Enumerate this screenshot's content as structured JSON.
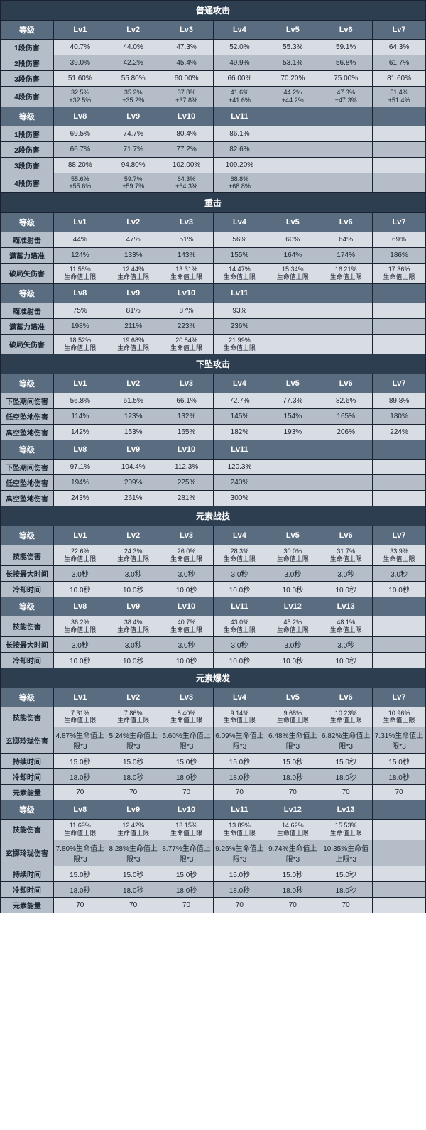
{
  "colors": {
    "section_header_bg": "#2d3e50",
    "col_header_bg": "#5a6c80",
    "row_label_bg": "#b5bec8",
    "cell_light_bg": "#d8dde3",
    "cell_dark_bg": "#b5bec8",
    "border": "#1a2332",
    "header_text": "#ffffff",
    "cell_text": "#1a2332"
  },
  "labels": {
    "level": "等级",
    "lv": [
      "Lv1",
      "Lv2",
      "Lv3",
      "Lv4",
      "Lv5",
      "Lv6",
      "Lv7",
      "Lv8",
      "Lv9",
      "Lv10",
      "Lv11",
      "Lv12",
      "Lv13"
    ]
  },
  "sections": [
    {
      "title": "普通攻击",
      "blocks": [
        {
          "levels": [
            "Lv1",
            "Lv2",
            "Lv3",
            "Lv4",
            "Lv5",
            "Lv6",
            "Lv7"
          ],
          "rows": [
            {
              "label": "1段伤害",
              "cells": [
                "40.7%",
                "44.0%",
                "47.3%",
                "52.0%",
                "55.3%",
                "59.1%",
                "64.3%"
              ]
            },
            {
              "label": "2段伤害",
              "cells": [
                "39.0%",
                "42.2%",
                "45.4%",
                "49.9%",
                "53.1%",
                "56.8%",
                "61.7%"
              ]
            },
            {
              "label": "3段伤害",
              "cells": [
                "51.60%",
                "55.80%",
                "60.00%",
                "66.00%",
                "70.20%",
                "75.00%",
                "81.60%"
              ]
            },
            {
              "label": "4段伤害",
              "cells": [
                "32.5% +32.5%",
                "35.2% +35.2%",
                "37.8% +37.8%",
                "41.6% +41.6%",
                "44.2% +44.2%",
                "47.3% +47.3%",
                "51.4% +51.4%"
              ]
            }
          ]
        },
        {
          "levels": [
            "Lv8",
            "Lv9",
            "Lv10",
            "Lv11",
            "",
            "",
            ""
          ],
          "rows": [
            {
              "label": "1段伤害",
              "cells": [
                "69.5%",
                "74.7%",
                "80.4%",
                "86.1%",
                "",
                "",
                ""
              ]
            },
            {
              "label": "2段伤害",
              "cells": [
                "66.7%",
                "71.7%",
                "77.2%",
                "82.6%",
                "",
                "",
                ""
              ]
            },
            {
              "label": "3段伤害",
              "cells": [
                "88.20%",
                "94.80%",
                "102.00%",
                "109.20%",
                "",
                "",
                ""
              ]
            },
            {
              "label": "4段伤害",
              "cells": [
                "55.6% +55.6%",
                "59.7% +59.7%",
                "64.3% +64.3%",
                "68.8% +68.8%",
                "",
                "",
                ""
              ]
            }
          ]
        }
      ]
    },
    {
      "title": "重击",
      "blocks": [
        {
          "levels": [
            "Lv1",
            "Lv2",
            "Lv3",
            "Lv4",
            "Lv5",
            "Lv6",
            "Lv7"
          ],
          "rows": [
            {
              "label": "瞄准射击",
              "cells": [
                "44%",
                "47%",
                "51%",
                "56%",
                "60%",
                "64%",
                "69%"
              ]
            },
            {
              "label": "满蓄力瞄准",
              "cells": [
                "124%",
                "133%",
                "143%",
                "155%",
                "164%",
                "174%",
                "186%"
              ]
            },
            {
              "label": "破局矢伤害",
              "cells": [
                "11.58% 生命值上限",
                "12.44% 生命值上限",
                "13.31% 生命值上限",
                "14.47% 生命值上限",
                "15.34% 生命值上限",
                "16.21% 生命值上限",
                "17.36% 生命值上限"
              ]
            }
          ]
        },
        {
          "levels": [
            "Lv8",
            "Lv9",
            "Lv10",
            "Lv11",
            "",
            "",
            ""
          ],
          "rows": [
            {
              "label": "瞄准射击",
              "cells": [
                "75%",
                "81%",
                "87%",
                "93%",
                "",
                "",
                ""
              ]
            },
            {
              "label": "满蓄力瞄准",
              "cells": [
                "198%",
                "211%",
                "223%",
                "236%",
                "",
                "",
                ""
              ]
            },
            {
              "label": "破局矢伤害",
              "cells": [
                "18.52% 生命值上限",
                "19.68% 生命值上限",
                "20.84% 生命值上限",
                "21.99% 生命值上限",
                "",
                "",
                ""
              ]
            }
          ]
        }
      ]
    },
    {
      "title": "下坠攻击",
      "blocks": [
        {
          "levels": [
            "Lv1",
            "Lv2",
            "Lv3",
            "Lv4",
            "Lv5",
            "Lv6",
            "Lv7"
          ],
          "rows": [
            {
              "label": "下坠期间伤害",
              "cells": [
                "56.8%",
                "61.5%",
                "66.1%",
                "72.7%",
                "77.3%",
                "82.6%",
                "89.8%"
              ]
            },
            {
              "label": "低空坠地伤害",
              "cells": [
                "114%",
                "123%",
                "132%",
                "145%",
                "154%",
                "165%",
                "180%"
              ]
            },
            {
              "label": "高空坠地伤害",
              "cells": [
                "142%",
                "153%",
                "165%",
                "182%",
                "193%",
                "206%",
                "224%"
              ]
            }
          ]
        },
        {
          "levels": [
            "Lv8",
            "Lv9",
            "Lv10",
            "Lv11",
            "",
            "",
            ""
          ],
          "rows": [
            {
              "label": "下坠期间伤害",
              "cells": [
                "97.1%",
                "104.4%",
                "112.3%",
                "120.3%",
                "",
                "",
                ""
              ]
            },
            {
              "label": "低空坠地伤害",
              "cells": [
                "194%",
                "209%",
                "225%",
                "240%",
                "",
                "",
                ""
              ]
            },
            {
              "label": "高空坠地伤害",
              "cells": [
                "243%",
                "261%",
                "281%",
                "300%",
                "",
                "",
                ""
              ]
            }
          ]
        }
      ]
    },
    {
      "title": "元素战技",
      "blocks": [
        {
          "levels": [
            "Lv1",
            "Lv2",
            "Lv3",
            "Lv4",
            "Lv5",
            "Lv6",
            "Lv7"
          ],
          "rows": [
            {
              "label": "技能伤害",
              "cells": [
                "22.6% 生命值上限",
                "24.3% 生命值上限",
                "26.0% 生命值上限",
                "28.3% 生命值上限",
                "30.0% 生命值上限",
                "31.7% 生命值上限",
                "33.9% 生命值上限"
              ]
            },
            {
              "label": "长按最大时间",
              "cells": [
                "3.0秒",
                "3.0秒",
                "3.0秒",
                "3.0秒",
                "3.0秒",
                "3.0秒",
                "3.0秒"
              ]
            },
            {
              "label": "冷却时间",
              "cells": [
                "10.0秒",
                "10.0秒",
                "10.0秒",
                "10.0秒",
                "10.0秒",
                "10.0秒",
                "10.0秒"
              ]
            }
          ]
        },
        {
          "levels": [
            "Lv8",
            "Lv9",
            "Lv10",
            "Lv11",
            "Lv12",
            "Lv13",
            ""
          ],
          "rows": [
            {
              "label": "技能伤害",
              "cells": [
                "36.2% 生命值上限",
                "38.4% 生命值上限",
                "40.7% 生命值上限",
                "43.0% 生命值上限",
                "45.2% 生命值上限",
                "48.1% 生命值上限",
                ""
              ]
            },
            {
              "label": "长按最大时间",
              "cells": [
                "3.0秒",
                "3.0秒",
                "3.0秒",
                "3.0秒",
                "3.0秒",
                "3.0秒",
                ""
              ]
            },
            {
              "label": "冷却时间",
              "cells": [
                "10.0秒",
                "10.0秒",
                "10.0秒",
                "10.0秒",
                "10.0秒",
                "10.0秒",
                ""
              ]
            }
          ]
        }
      ]
    },
    {
      "title": "元素爆发",
      "blocks": [
        {
          "levels": [
            "Lv1",
            "Lv2",
            "Lv3",
            "Lv4",
            "Lv5",
            "Lv6",
            "Lv7"
          ],
          "rows": [
            {
              "label": "技能伤害",
              "cells": [
                "7.31% 生命值上限",
                "7.86% 生命值上限",
                "8.40% 生命值上限",
                "9.14% 生命值上限",
                "9.68% 生命值上限",
                "10.23% 生命值上限",
                "10.96% 生命值上限"
              ]
            },
            {
              "label": "玄掷玲珑伤害",
              "cells": [
                "4.87%生命值上限*3",
                "5.24%生命值上限*3",
                "5.60%生命值上限*3",
                "6.09%生命值上限*3",
                "6.48%生命值上限*3",
                "6.82%生命值上限*3",
                "7.31%生命值上限*3"
              ]
            },
            {
              "label": "持续时间",
              "cells": [
                "15.0秒",
                "15.0秒",
                "15.0秒",
                "15.0秒",
                "15.0秒",
                "15.0秒",
                "15.0秒"
              ]
            },
            {
              "label": "冷却时间",
              "cells": [
                "18.0秒",
                "18.0秒",
                "18.0秒",
                "18.0秒",
                "18.0秒",
                "18.0秒",
                "18.0秒"
              ]
            },
            {
              "label": "元素能量",
              "cells": [
                "70",
                "70",
                "70",
                "70",
                "70",
                "70",
                "70"
              ]
            }
          ]
        },
        {
          "levels": [
            "Lv8",
            "Lv9",
            "Lv10",
            "Lv11",
            "Lv12",
            "Lv13",
            ""
          ],
          "rows": [
            {
              "label": "技能伤害",
              "cells": [
                "11.69% 生命值上限",
                "12.42% 生命值上限",
                "13.15% 生命值上限",
                "13.89% 生命值上限",
                "14.62% 生命值上限",
                "15.53% 生命值上限",
                ""
              ]
            },
            {
              "label": "玄掷玲珑伤害",
              "cells": [
                "7.80%生命值上限*3",
                "8.28%生命值上限*3",
                "8.77%生命值上限*3",
                "9.26%生命值上限*3",
                "9.74%生命值上限*3",
                "10.35%生命值上限*3",
                ""
              ]
            },
            {
              "label": "持续时间",
              "cells": [
                "15.0秒",
                "15.0秒",
                "15.0秒",
                "15.0秒",
                "15.0秒",
                "15.0秒",
                ""
              ]
            },
            {
              "label": "冷却时间",
              "cells": [
                "18.0秒",
                "18.0秒",
                "18.0秒",
                "18.0秒",
                "18.0秒",
                "18.0秒",
                ""
              ]
            },
            {
              "label": "元素能量",
              "cells": [
                "70",
                "70",
                "70",
                "70",
                "70",
                "70",
                ""
              ]
            }
          ]
        }
      ]
    }
  ]
}
